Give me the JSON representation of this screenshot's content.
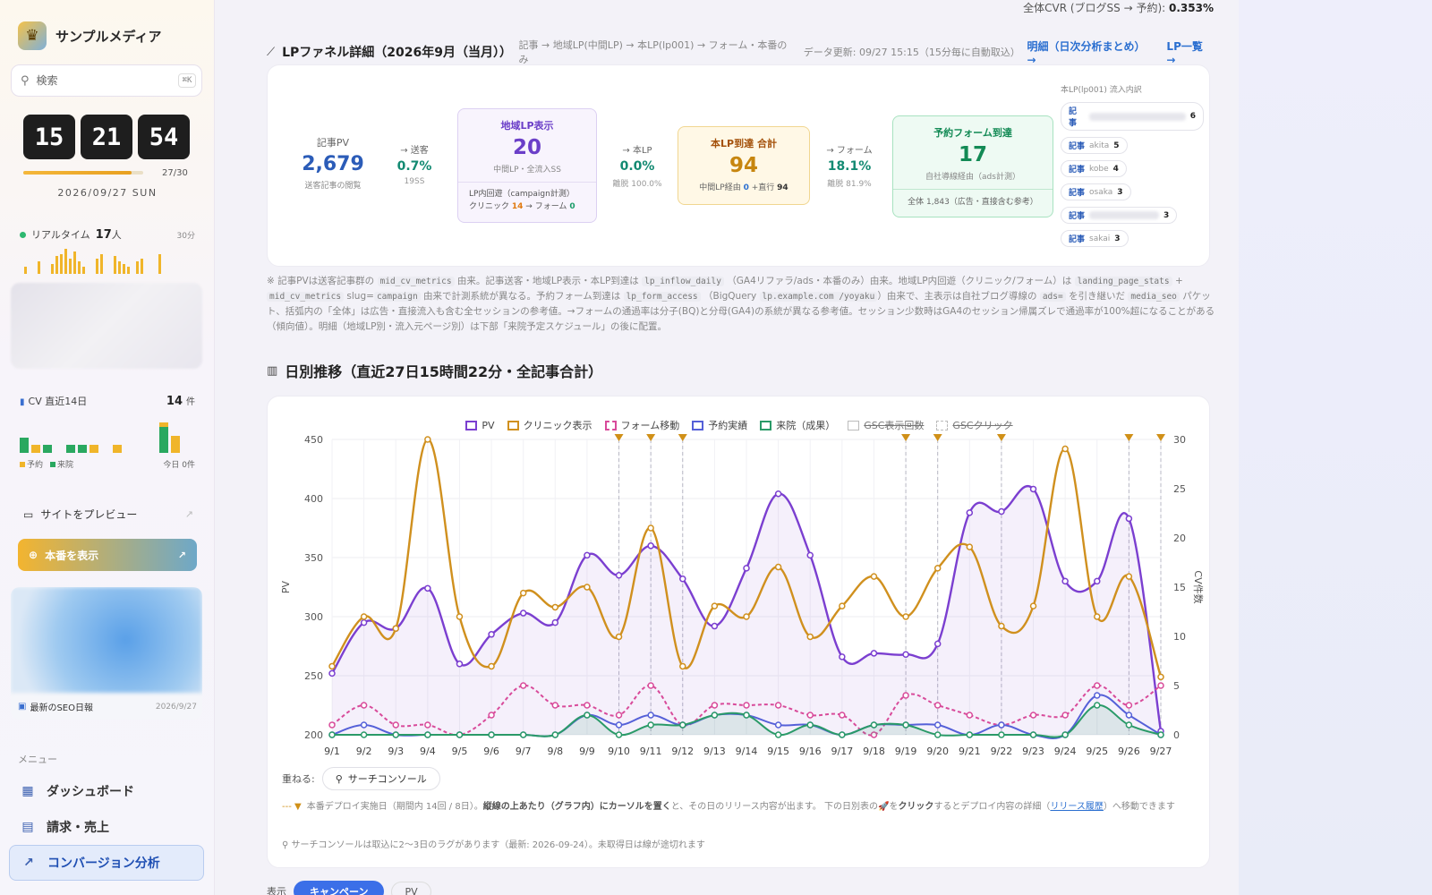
{
  "brand": {
    "name": "サンプルメディア",
    "logo_icon": "crown-icon"
  },
  "search": {
    "placeholder": "検索",
    "shortcut": "⌘K"
  },
  "clock": {
    "h": "15",
    "m": "21",
    "s": "54",
    "progress": 0.9,
    "count": "27/30",
    "date": "2026/09/27 SUN"
  },
  "realtime": {
    "label": "リアルタイム",
    "count": "17",
    "unit": "人",
    "window": "30分",
    "bars": [
      0,
      3,
      0,
      0,
      5,
      0,
      0,
      4,
      7,
      8,
      10,
      6,
      9,
      5,
      3,
      0,
      0,
      6,
      8,
      0,
      0,
      7,
      5,
      4,
      3,
      0,
      5,
      6,
      0,
      0,
      0,
      8,
      0,
      0
    ]
  },
  "cv": {
    "label": "CV 直近14日",
    "total": "14",
    "unit": "件",
    "bars": [
      {
        "c": "g",
        "v": 3
      },
      {
        "c": "y",
        "v": 1.6
      },
      {
        "c": "g",
        "v": 1.6
      },
      {
        "c": "n",
        "v": 0
      },
      {
        "c": "g",
        "v": 1.6
      },
      {
        "c": "g",
        "v": 1.6
      },
      {
        "c": "y",
        "v": 1.6
      },
      {
        "c": "n",
        "v": 0
      },
      {
        "c": "y",
        "v": 1.6
      },
      {
        "c": "n",
        "v": 0
      },
      {
        "c": "n",
        "v": 0
      },
      {
        "c": "n",
        "v": 0
      },
      {
        "c": "gy",
        "v": 6
      },
      {
        "c": "y",
        "v": 3.4
      }
    ],
    "legend_yoyaku": "予約",
    "legend_raiin": "来院",
    "today": "今日 0件"
  },
  "sidebar": {
    "preview": "サイトをプレビュー",
    "production": "本番を表示",
    "seo_caption": "最新のSEO日報",
    "seo_date": "2026/9/27",
    "menu_label": "メニュー",
    "nav": [
      "ダッシュボード",
      "請求・売上",
      "コンバージョン分析"
    ]
  },
  "top_cvr": {
    "label": "全体CVR (ブログSS → 予約):",
    "value": "0.353%"
  },
  "funnel_section": {
    "title": "LPファネル詳細（2026年9月（当月））",
    "path": "記事 → 地域LP(中間LP) → 本LP(lp001) → フォーム・本番のみ",
    "updated": "データ更新: 09/27 15:15（15分毎に自動取込）",
    "link1": "明細（日次分析まとめ） →",
    "link2": "LP一覧 →"
  },
  "funnel": {
    "article_pv": {
      "label": "記事PV",
      "value": "2,679",
      "note": "送客記事の閲覧"
    },
    "to_send": {
      "label": "→ 送客",
      "value": "0.7%",
      "note": "19SS"
    },
    "area_lp": {
      "label": "地域LP表示",
      "value": "20",
      "note": "中間LP・全流入SS",
      "inner_head": "LP内回遊（campaign計測）",
      "clinic_label": "クリニック",
      "clinic_val": "14",
      "form_label": "→ フォーム",
      "form_val": "0"
    },
    "to_lp": {
      "label": "→ 本LP",
      "value": "0.0%",
      "note": "離脱 100.0%"
    },
    "lp_total": {
      "label": "本LP到達 合計",
      "value": "94",
      "via_label": "中間LP経由",
      "via_val": "0",
      "direct_label": "+直行",
      "direct_val": "94"
    },
    "to_form": {
      "label": "→ フォーム",
      "value": "18.1%",
      "note": "離脱 81.9%"
    },
    "form_reach": {
      "label": "予約フォーム到達",
      "value": "17",
      "note": "自社導線経由（ads計測）",
      "foot": "全体 1,843（広告・直接含む参考）"
    }
  },
  "inflow": {
    "title": "本LP(lp001) 流入内訳",
    "items": [
      {
        "k": "記事",
        "s": "",
        "n": "6",
        "blur": true
      },
      {
        "k": "記事",
        "s": "akita",
        "n": "5",
        "blur": false
      },
      {
        "k": "記事",
        "s": "kobe",
        "n": "4",
        "blur": false
      },
      {
        "k": "記事",
        "s": "osaka",
        "n": "3",
        "blur": false
      },
      {
        "k": "記事",
        "s": "",
        "n": "3",
        "blur": true
      },
      {
        "k": "記事",
        "s": "sakai",
        "n": "3",
        "blur": false
      }
    ]
  },
  "footnote": {
    "p1": "※ 記事PVは送客記事群の",
    "c1": "mid_cv_metrics",
    "p2": "由来。記事送客・地域LP表示・本LP到達は",
    "c2": "lp_inflow_daily",
    "p3": "（GA4リファラ/ads・本番のみ）由来。地域LP内回遊（クリニック/フォーム）は",
    "c3": "landing_page_stats",
    "p3b": "+",
    "c4": "mid_cv_metrics",
    "p4": "slug=",
    "c5": "campaign",
    "p5": "由来で計測系統が異なる。予約フォーム到達は",
    "c6": "lp_form_access",
    "p6": "（BigQuery",
    "c7": "lp.example.com /yoyaku",
    "p7": "）由来で、主表示は自社ブログ導線の",
    "c8": "ads=",
    "p8": "を引き継いだ",
    "c9": "media_seo",
    "p9": "パケット、括弧内の「全体」は広告・直接流入も含む全セッションの参考値。→フォームの通過率は分子(BQ)と分母(GA4)の系統が異なる参考値。セッション少数時はGA4のセッション帰属ズレで通過率が100%超になることがある（傾向値）。明細（地域LP別・流入元ページ別）は下部「来院予定スケジュール」の後に配置。"
  },
  "daily_section": {
    "title": "日別推移（直近27日15時間22分・全記事合計）"
  },
  "chart_data": {
    "type": "line",
    "categories": [
      "9/1",
      "9/2",
      "9/3",
      "9/4",
      "9/5",
      "9/6",
      "9/7",
      "9/8",
      "9/9",
      "9/10",
      "9/11",
      "9/12",
      "9/13",
      "9/14",
      "9/15",
      "9/16",
      "9/17",
      "9/18",
      "9/19",
      "9/20",
      "9/21",
      "9/22",
      "9/23",
      "9/24",
      "9/25",
      "9/26",
      "9/27"
    ],
    "ylabel": "PV",
    "y2label": "CV件数",
    "ylim": [
      200,
      450
    ],
    "y2lim": [
      0,
      30
    ],
    "yticks": [
      200,
      250,
      300,
      350,
      400,
      450
    ],
    "y2ticks": [
      0,
      5,
      10,
      15,
      20,
      25,
      30
    ],
    "series": [
      {
        "name": "PV",
        "axis": "left",
        "color": "#7b3fd0",
        "dash": false,
        "fill": true,
        "values": [
          252,
          295,
          290,
          324,
          260,
          285,
          303,
          295,
          352,
          335,
          360,
          332,
          292,
          341,
          404,
          352,
          266,
          269,
          268,
          277,
          388,
          389,
          408,
          330,
          330,
          383,
          203
        ]
      },
      {
        "name": "クリニック表示",
        "axis": "left",
        "color": "#d0901e",
        "dash": false,
        "values": [
          258,
          300,
          290,
          450,
          300,
          258,
          320,
          308,
          325,
          283,
          375,
          258,
          309,
          300,
          342,
          283,
          309,
          334,
          300,
          341,
          359,
          292,
          309,
          442,
          300,
          334,
          249
        ]
      },
      {
        "name": "フォーム移動",
        "axis": "right",
        "color": "#d84a9a",
        "dash": true,
        "values": [
          1,
          3,
          1,
          1,
          0,
          2,
          5,
          3,
          3,
          2,
          5,
          1,
          3,
          3,
          3,
          2,
          2,
          0,
          4,
          3,
          2,
          1,
          2,
          2,
          5,
          3,
          5
        ]
      },
      {
        "name": "予約実績",
        "axis": "right",
        "color": "#5560d8",
        "dash": false,
        "values": [
          0,
          1,
          0,
          0,
          0,
          0,
          0,
          0,
          2,
          1,
          2,
          1,
          2,
          2,
          1,
          1,
          0,
          1,
          1,
          1,
          0,
          1,
          0,
          0,
          4,
          2,
          0
        ]
      },
      {
        "name": "来院（成果）",
        "axis": "right",
        "color": "#2a9a68",
        "dash": false,
        "values": [
          0,
          0,
          0,
          0,
          0,
          0,
          0,
          0,
          2,
          0,
          1,
          1,
          2,
          2,
          0,
          1,
          0,
          1,
          1,
          0,
          0,
          0,
          0,
          0,
          3,
          1,
          0
        ]
      }
    ],
    "legend_off": [
      "GSC表示回数",
      "GSCクリック"
    ],
    "deploy_days": [
      "9/10",
      "9/11",
      "9/12",
      "9/19",
      "9/20",
      "9/22",
      "9/26",
      "9/27"
    ],
    "grid": true,
    "legend_position": "top"
  },
  "chart_controls": {
    "overlay_label": "重ねる:",
    "overlay_btn": "サーチコンソール",
    "deploy_mark": "--- ▼",
    "deploy_text1": "本番デプロイ実施日（期間内 14回 / 8日）。",
    "deploy_bold1": "縦線の上あたり（グラフ内）にカーソルを置く",
    "deploy_text2": "と、その日のリリース内容が出ます。 下の日別表の",
    "deploy_rocket": "🚀",
    "deploy_text3": "を",
    "deploy_bold2": "クリック",
    "deploy_text4": "するとデプロイ内容の詳細（",
    "deploy_link": "リリース履歴",
    "deploy_text5": "）へ移動できます",
    "sc_note": "サーチコンソールは取込に2〜3日のラグがあります（最新: 2026-09-24）。未取得日は線が途切れます"
  },
  "bottom": {
    "label": "表示",
    "tab_on": "キャンペーン",
    "tab_off": "PV"
  }
}
